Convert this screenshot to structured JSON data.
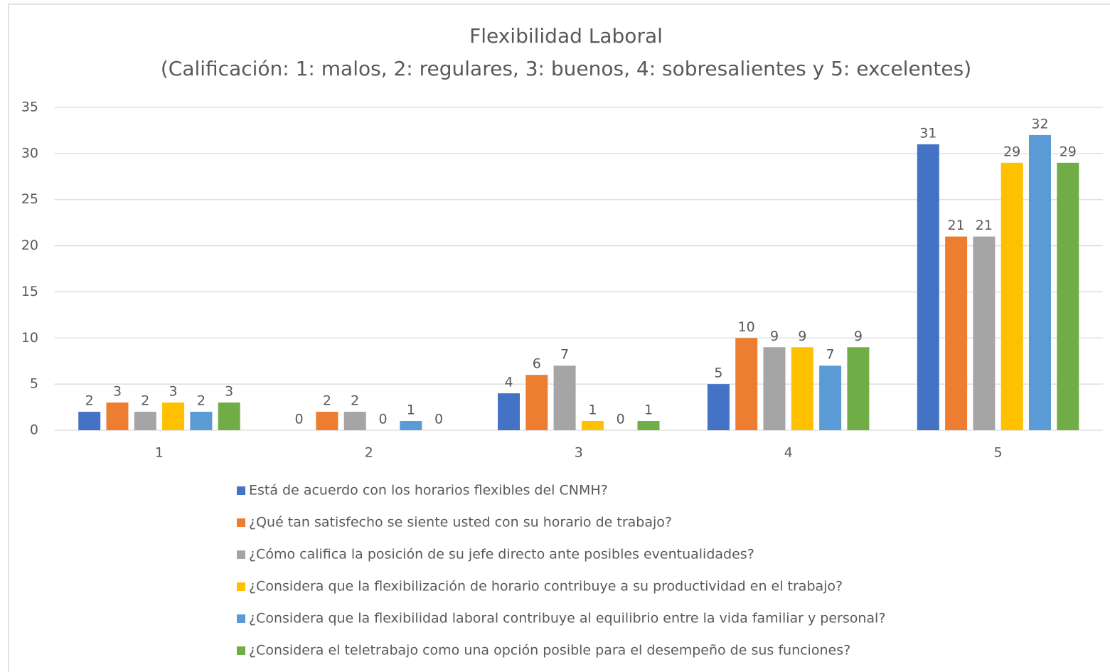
{
  "chart_data": {
    "type": "bar",
    "title": "Flexibilidad Laboral",
    "subtitle": "(Calificación: 1: malos, 2: regulares, 3: buenos, 4: sobresalientes y 5: excelentes)",
    "categories": [
      "1",
      "2",
      "3",
      "4",
      "5"
    ],
    "series": [
      {
        "name": "Está de acuerdo con los horarios flexibles del CNMH?",
        "color": "#4472c4",
        "values": [
          2,
          0,
          4,
          5,
          31
        ]
      },
      {
        "name": "¿Qué tan satisfecho se siente usted con su horario de trabajo?",
        "color": "#ed7d31",
        "values": [
          3,
          2,
          6,
          10,
          21
        ]
      },
      {
        "name": "¿Cómo califica la posición de su jefe directo ante posibles eventualidades?",
        "color": "#a5a5a5",
        "values": [
          2,
          2,
          7,
          9,
          21
        ]
      },
      {
        "name": "¿Considera que la flexibilización de horario contribuye a su productividad en el trabajo?",
        "color": "#ffc000",
        "values": [
          3,
          0,
          1,
          9,
          29
        ]
      },
      {
        "name": "¿Considera que la flexibilidad laboral contribuye al equilibrio entre la vida familiar y personal?",
        "color": "#5b9bd5",
        "values": [
          2,
          1,
          0,
          7,
          32
        ]
      },
      {
        "name": "¿Considera el teletrabajo como una opción posible para el desempeño de sus funciones?",
        "color": "#70ad47",
        "values": [
          3,
          0,
          1,
          9,
          29
        ]
      }
    ],
    "ylim": [
      0,
      35
    ],
    "yticks": [
      0,
      5,
      10,
      15,
      20,
      25,
      30,
      35
    ],
    "grid": true,
    "legend": "bottom"
  }
}
